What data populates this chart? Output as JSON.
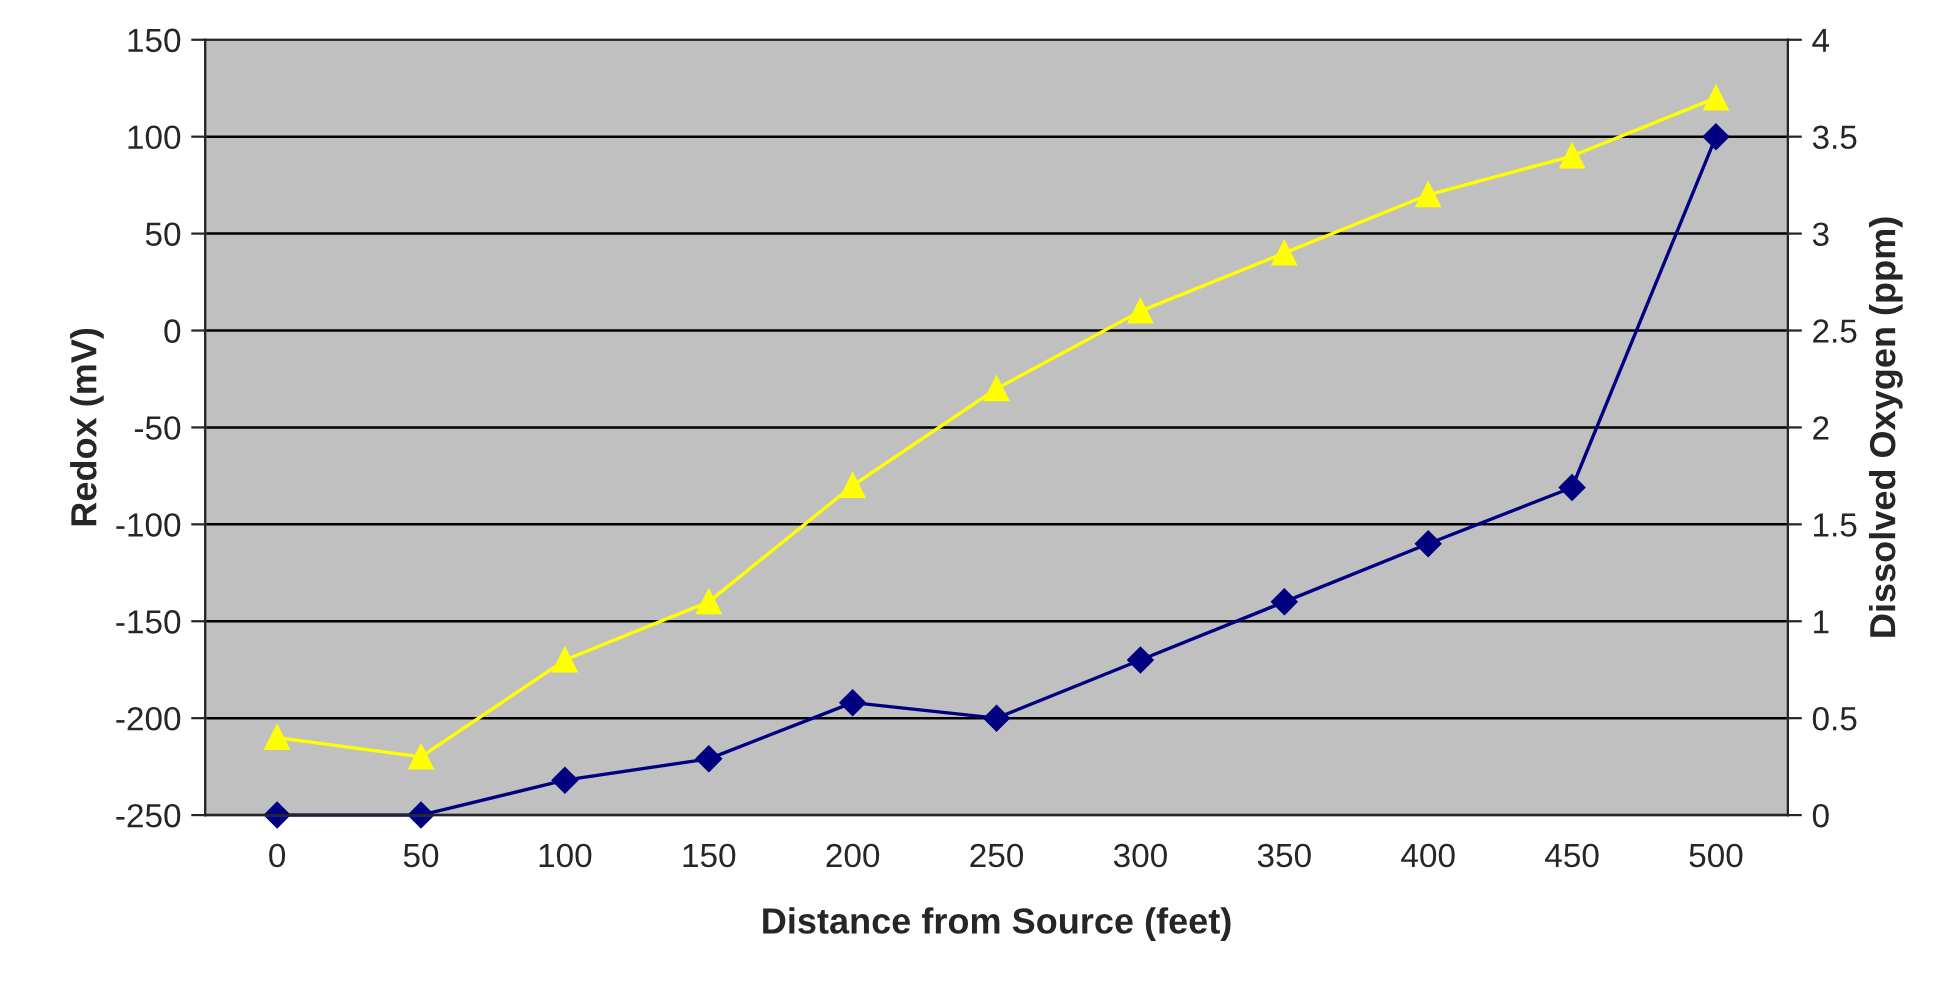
{
  "chart_data": {
    "type": "line",
    "xlabel": "Distance from Source (feet)",
    "ylabel": "Redox (mV)",
    "y2label": "Dissolved Oxygen (ppm)",
    "categories": [
      "0",
      "50",
      "100",
      "150",
      "200",
      "250",
      "300",
      "350",
      "400",
      "450",
      "500"
    ],
    "series": [
      {
        "color": "#000080",
        "marker": "diamond",
        "values": [
          -250,
          -250,
          -232,
          -221,
          -192,
          -200,
          -170,
          -140,
          -110,
          -81,
          100
        ]
      },
      {
        "color": "#ffff00",
        "marker": "triangle",
        "axis": "y2",
        "values": [
          0.4,
          0.3,
          0.8,
          1.1,
          1.7,
          2.2,
          2.6,
          2.9,
          3.2,
          3.4,
          3.7
        ]
      }
    ],
    "ylim": [
      -250,
      150
    ],
    "yticks": [
      -250,
      -200,
      -150,
      -100,
      -50,
      0,
      50,
      100,
      150
    ],
    "y2lim": [
      0,
      4
    ],
    "y2ticks": [
      0,
      0.5,
      1,
      1.5,
      2,
      2.5,
      3,
      3.5,
      4
    ],
    "grid": "y",
    "line_style": "solid"
  }
}
